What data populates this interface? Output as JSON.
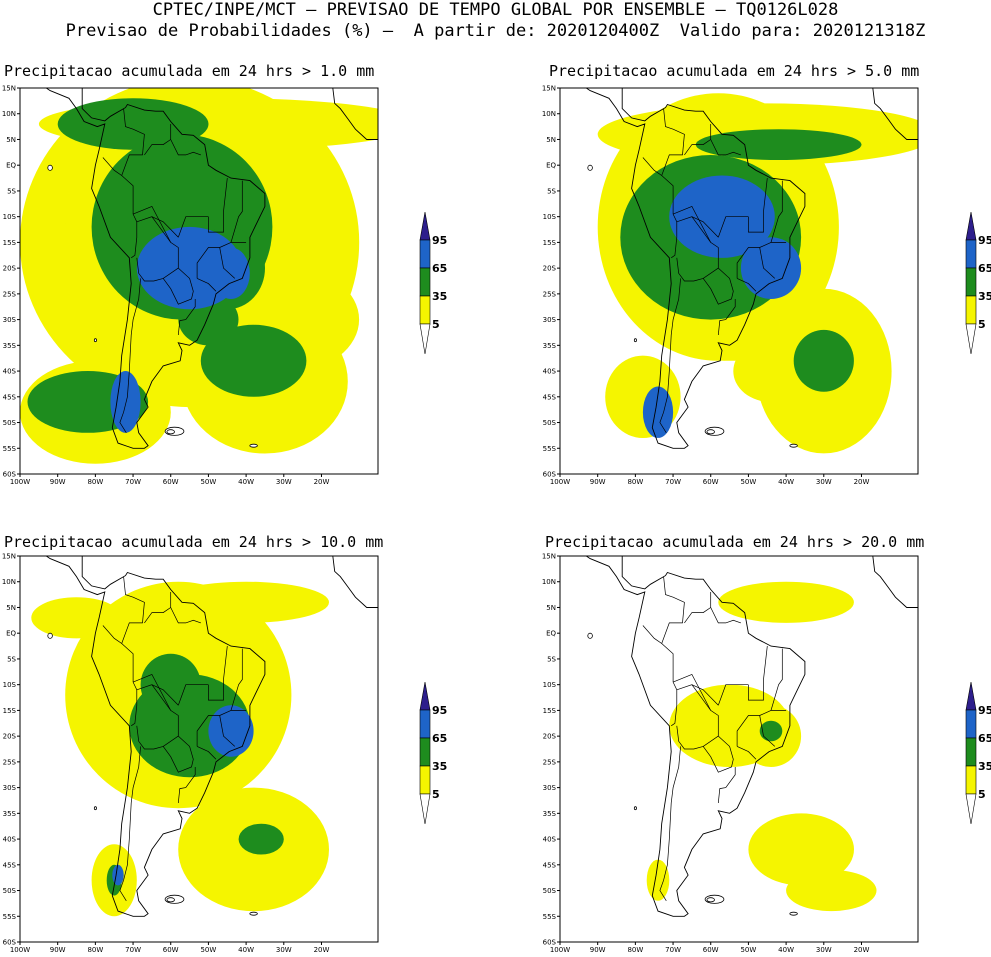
{
  "header": {
    "line1": "CPTEC/INPE/MCT – PREVISAO DE TEMPO GLOBAL POR ENSEMBLE – TQ0126L028",
    "line2": "Previsao de Probabilidades (%) –  A partir de: 2020120400Z  Valido para: 2020121318Z"
  },
  "colors": {
    "c5": "#f5f500",
    "c35": "#1e8c1e",
    "c65": "#1e64c8",
    "c95": "#2d1e8c",
    "land": "#ffffff"
  },
  "legend_levels": [
    "5",
    "35",
    "65",
    "95"
  ],
  "lat_ticks": [
    "15N",
    "10N",
    "5N",
    "EQ",
    "5S",
    "10S",
    "15S",
    "20S",
    "25S",
    "30S",
    "35S",
    "40S",
    "45S",
    "50S",
    "55S",
    "60S"
  ],
  "lon_ticks": [
    "100W",
    "90W",
    "80W",
    "70W",
    "60W",
    "50W",
    "40W",
    "30W",
    "20W"
  ],
  "panels": [
    {
      "title": "Precipitacao acumulada em 24 hrs > 1.0 mm",
      "threshold_mm": 1.0
    },
    {
      "title": "Precipitacao acumulada em 24 hrs > 5.0 mm",
      "threshold_mm": 5.0
    },
    {
      "title": "Precipitacao acumulada em 24 hrs > 10.0 mm",
      "threshold_mm": 10.0
    },
    {
      "title": "Precipitacao acumulada em 24 hrs > 20.0 mm",
      "threshold_mm": 20.0
    }
  ]
}
